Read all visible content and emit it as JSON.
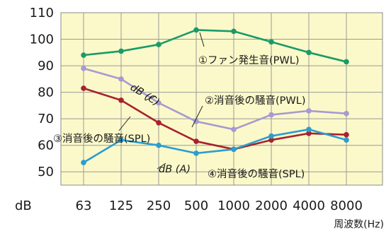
{
  "chart_data": {
    "type": "line",
    "categories": [
      "63",
      "125",
      "250",
      "500",
      "1000",
      "2000",
      "4000",
      "8000"
    ],
    "y_ticks": [
      "110",
      "100",
      "90",
      "80",
      "70",
      "60",
      "50"
    ],
    "ylim": [
      45,
      110
    ],
    "ylabel": "dB",
    "xlabel": "周波数(Hz)",
    "grid": true,
    "series": [
      {
        "name": "①ファン発生音(PWL)",
        "color": "#1a9a6a",
        "values": [
          94,
          95.5,
          98,
          103.5,
          103,
          99,
          95,
          91.5
        ]
      },
      {
        "name": "②消音後の騒音(PWL)",
        "color": "#a79ad0",
        "values": [
          89,
          85,
          76,
          69,
          66,
          71.5,
          73,
          72
        ]
      },
      {
        "name": "③消音後の騒音(SPL)",
        "color": "#a8222e",
        "values": [
          81.5,
          77,
          68.5,
          61.5,
          58.5,
          62,
          64.5,
          64
        ]
      },
      {
        "name": "④消音後の騒音(SPL)",
        "color": "#2a9ed0",
        "values": [
          53.5,
          62,
          60,
          57,
          58.5,
          63.5,
          66,
          62
        ]
      }
    ],
    "annotations": [
      {
        "id": "dbc",
        "text": "dB (C)",
        "italic": true
      },
      {
        "id": "dba",
        "text": "dB (A)",
        "italic": true
      }
    ],
    "colors": {
      "plot_background": "#fbf9c9",
      "grid": "#9a9a9a"
    }
  }
}
